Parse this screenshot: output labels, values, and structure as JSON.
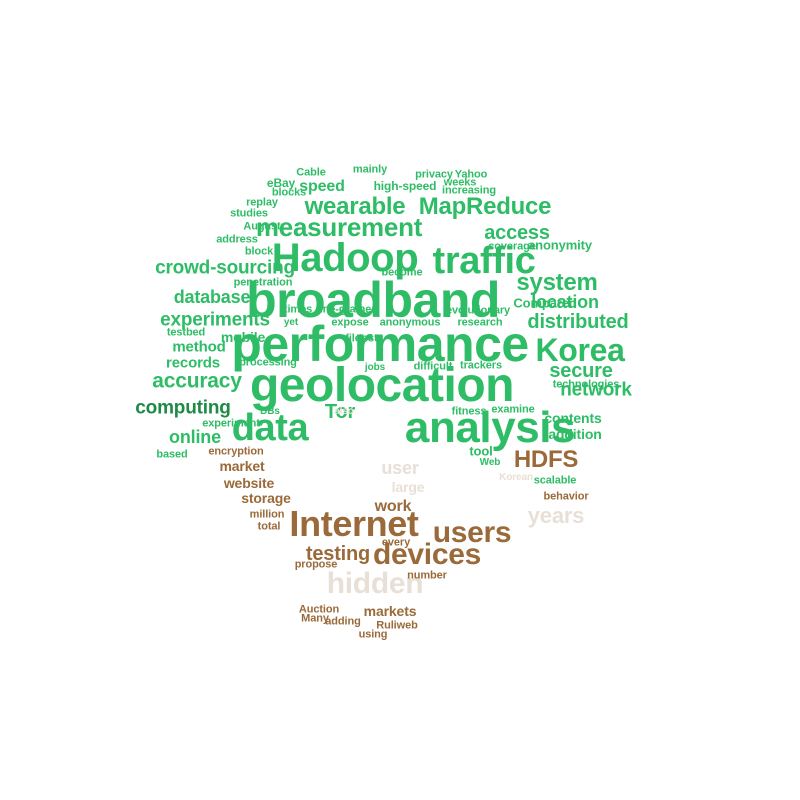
{
  "palette": {
    "green": "#2ebd66",
    "dark_green": "#1d8a45",
    "brown": "#9a6a3a",
    "beige": "#e8e0d6"
  },
  "words": [
    {
      "text": "broadband"
    },
    {
      "text": "performance"
    },
    {
      "text": "geolocation"
    },
    {
      "text": "Hadoop"
    },
    {
      "text": "traffic"
    },
    {
      "text": "analysis"
    },
    {
      "text": "measurement"
    },
    {
      "text": "wearable"
    },
    {
      "text": "MapReduce"
    },
    {
      "text": "data"
    },
    {
      "text": "Korea"
    },
    {
      "text": "system"
    },
    {
      "text": "crowd-sourcing"
    },
    {
      "text": "experiments"
    },
    {
      "text": "distributed"
    },
    {
      "text": "location"
    },
    {
      "text": "accuracy"
    },
    {
      "text": "secure"
    },
    {
      "text": "network"
    },
    {
      "text": "computing"
    },
    {
      "text": "online"
    },
    {
      "text": "database"
    },
    {
      "text": "access"
    },
    {
      "text": "speed"
    },
    {
      "text": "Tor"
    },
    {
      "text": "records"
    },
    {
      "text": "method"
    },
    {
      "text": "mobile"
    },
    {
      "text": "testing"
    },
    {
      "text": "HDFS"
    },
    {
      "text": "Internet"
    },
    {
      "text": "users"
    },
    {
      "text": "devices"
    },
    {
      "text": "hidden"
    },
    {
      "text": "user"
    },
    {
      "text": "years"
    },
    {
      "text": "large"
    },
    {
      "text": "work"
    },
    {
      "text": "website"
    },
    {
      "text": "market"
    },
    {
      "text": "storage"
    },
    {
      "text": "markets"
    },
    {
      "text": "contents"
    },
    {
      "text": "addition"
    },
    {
      "text": "tool"
    },
    {
      "text": "Compared"
    },
    {
      "text": "anonymity"
    },
    {
      "text": "technologies"
    },
    {
      "text": "high-speed"
    },
    {
      "text": "privacy"
    },
    {
      "text": "Yahoo"
    },
    {
      "text": "eBay"
    },
    {
      "text": "replay"
    },
    {
      "text": "August"
    },
    {
      "text": "blocks"
    },
    {
      "text": "times"
    },
    {
      "text": "fine-grained"
    },
    {
      "text": "processing"
    },
    {
      "text": "file"
    },
    {
      "text": "test"
    },
    {
      "text": "increasing"
    },
    {
      "text": "weeks"
    },
    {
      "text": "coverage"
    },
    {
      "text": "evolutionary"
    },
    {
      "text": "research"
    },
    {
      "text": "anonymous"
    },
    {
      "text": "expose"
    },
    {
      "text": "difficult"
    },
    {
      "text": "trackers"
    },
    {
      "text": "fitness"
    },
    {
      "text": "examine"
    },
    {
      "text": "Web"
    },
    {
      "text": "scalable"
    },
    {
      "text": "behavior"
    },
    {
      "text": "Korean"
    },
    {
      "text": "experiment"
    },
    {
      "text": "encryption"
    },
    {
      "text": "based"
    },
    {
      "text": "million"
    },
    {
      "text": "total"
    },
    {
      "text": "propose"
    },
    {
      "text": "every"
    },
    {
      "text": "number"
    },
    {
      "text": "Auction"
    },
    {
      "text": "Many"
    },
    {
      "text": "adding"
    },
    {
      "text": "Ruliweb"
    },
    {
      "text": "using"
    },
    {
      "text": "studies"
    },
    {
      "text": "address"
    },
    {
      "text": "penetration"
    },
    {
      "text": "testbed"
    },
    {
      "text": "block"
    },
    {
      "text": "Cable"
    },
    {
      "text": "mainly"
    },
    {
      "text": "become"
    },
    {
      "text": "jobs"
    },
    {
      "text": "DBs"
    },
    {
      "text": "also"
    },
    {
      "text": "yet"
    }
  ]
}
